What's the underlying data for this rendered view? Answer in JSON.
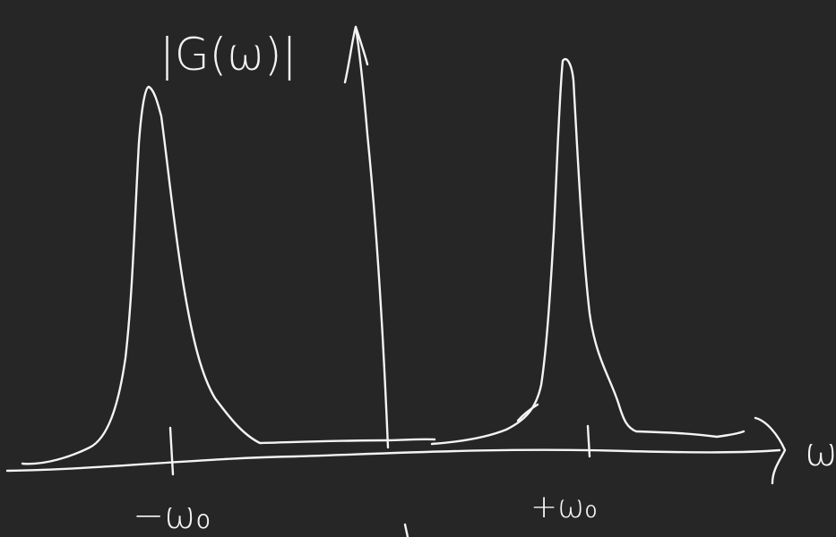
{
  "labels": {
    "y_axis": "|G(ω)|",
    "x_axis": "ω",
    "left_peak": "−ω₀",
    "right_peak": "+ω₀"
  }
}
